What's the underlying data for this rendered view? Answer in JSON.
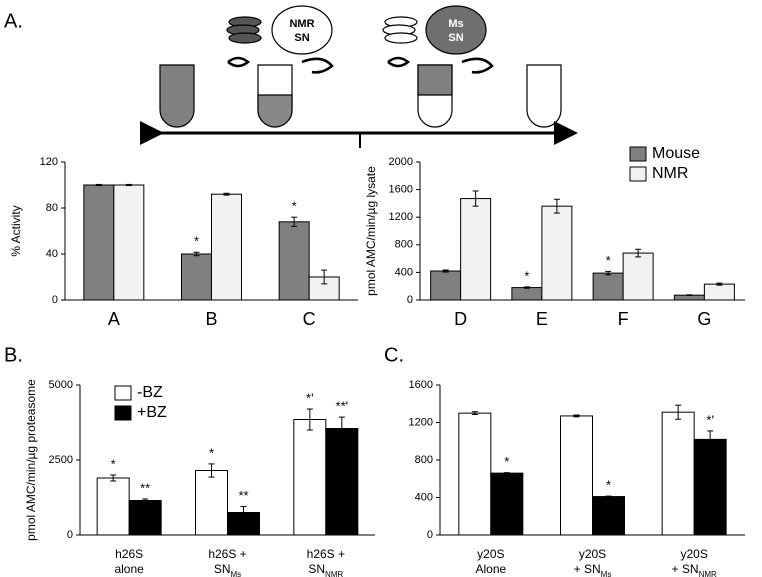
{
  "panel_labels": [
    "A.",
    "B.",
    "C."
  ],
  "diagram": {
    "nodes": [
      {
        "label": [
          "NMR",
          "SN"
        ]
      },
      {
        "label": [
          "Ms",
          "SN"
        ]
      }
    ]
  },
  "chart_data": [
    {
      "type": "bar",
      "y_label": "% Activity",
      "categories": [
        {
          "lines": [
            "A"
          ]
        },
        {
          "lines": [
            "B"
          ]
        },
        {
          "lines": [
            "C"
          ]
        }
      ],
      "series": [
        {
          "color": "#808080",
          "values": [
            100,
            40,
            68
          ],
          "errors": [
            0.5,
            1.5,
            4
          ],
          "annotations": [
            null,
            "*",
            "*"
          ]
        },
        {
          "color": "#f2f2f2",
          "values": [
            100,
            92,
            20
          ],
          "errors": [
            0.5,
            0.8,
            6
          ],
          "annotations": [
            null,
            null,
            null
          ]
        }
      ],
      "ylim": [
        0,
        120
      ],
      "yticks": [
        0,
        40,
        80,
        120
      ]
    },
    {
      "type": "bar",
      "y_label": "pmol AMC/min/µg lysate",
      "categories": [
        {
          "lines": [
            "D"
          ]
        },
        {
          "lines": [
            "E"
          ]
        },
        {
          "lines": [
            "F"
          ]
        },
        {
          "lines": [
            "G"
          ]
        }
      ],
      "series": [
        {
          "name": "Mouse",
          "color": "#808080",
          "values": [
            420,
            180,
            390,
            70
          ],
          "errors": [
            15,
            10,
            25,
            5
          ],
          "annotations": [
            null,
            "*",
            "*",
            null
          ]
        },
        {
          "name": "NMR",
          "color": "#f2f2f2",
          "values": [
            1470,
            1360,
            680,
            230
          ],
          "errors": [
            110,
            100,
            55,
            15
          ],
          "annotations": [
            null,
            null,
            null,
            null
          ]
        }
      ],
      "ylim": [
        0,
        2000
      ],
      "yticks": [
        0,
        400,
        800,
        1200,
        1600,
        2000
      ],
      "legend": "top-right"
    },
    {
      "type": "bar",
      "y_label": "pmol AMC/min/µg proteasome",
      "categories": [
        {
          "lines": [
            "h26S",
            "alone"
          ]
        },
        {
          "lines": [
            "h26S +",
            "SN"
          ],
          "sub": "Ms"
        },
        {
          "lines": [
            "h26S +",
            "SN"
          ],
          "sub": "NMR"
        }
      ],
      "series": [
        {
          "name": "-BZ",
          "color": "#ffffff",
          "values": [
            1900,
            2150,
            3850
          ],
          "errors": [
            100,
            220,
            350
          ],
          "annotations": [
            "*",
            "*",
            "*'"
          ]
        },
        {
          "name": "+BZ",
          "color": "#000000",
          "values": [
            1150,
            750,
            3550
          ],
          "errors": [
            50,
            200,
            380
          ],
          "annotations": [
            "**",
            "**",
            "**'"
          ]
        }
      ],
      "ylim": [
        0,
        5000
      ],
      "yticks": [
        0,
        2500,
        5000
      ],
      "legend": "top-left"
    },
    {
      "type": "bar",
      "categories": [
        {
          "lines": [
            "y20S",
            "Alone"
          ]
        },
        {
          "lines": [
            "y20S",
            "+ SN"
          ],
          "sub": "Ms"
        },
        {
          "lines": [
            "y20S",
            "+ SN"
          ],
          "sub": "NMR"
        }
      ],
      "series": [
        {
          "color": "#ffffff",
          "values": [
            1300,
            1270,
            1310
          ],
          "errors": [
            15,
            10,
            75
          ],
          "annotations": [
            null,
            null,
            null
          ]
        },
        {
          "color": "#000000",
          "values": [
            660,
            410,
            1020
          ],
          "errors": [
            5,
            5,
            90
          ],
          "annotations": [
            "*",
            "*",
            "*'"
          ]
        }
      ],
      "ylim": [
        0,
        1600
      ],
      "yticks": [
        0,
        400,
        800,
        1200,
        1600
      ]
    }
  ]
}
